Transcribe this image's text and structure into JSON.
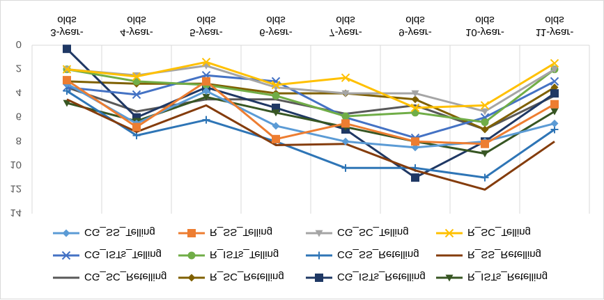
{
  "chart_data": {
    "type": "line",
    "title": "",
    "xlabel": "",
    "ylabel": "",
    "ylim": [
      0,
      14
    ],
    "y_ticks": [
      "0",
      "2",
      "4",
      "6",
      "8",
      "10",
      "12",
      "14"
    ],
    "y_reversed": true,
    "rendering": "image appears vertically mirrored (upside-down text)",
    "grid": "vertical category gridlines",
    "legend_position": "bottom",
    "categories": [
      [
        "3-year-",
        "olds"
      ],
      [
        "4-year-",
        "olds"
      ],
      [
        "5-year-",
        "olds"
      ],
      [
        "6-year-",
        "olds"
      ],
      [
        "7-year-",
        "olds"
      ],
      [
        "9-year-",
        "olds"
      ],
      [
        "10-year-",
        "olds"
      ],
      [
        "11-year-",
        "olds"
      ]
    ],
    "series": [
      {
        "name": "CG_SC_Retelling",
        "color": "#595959",
        "marker": "none",
        "values": [
          3.5,
          5.5,
          4.5,
          4.5,
          5.7,
          5.0,
          7.0,
          4.2
        ]
      },
      {
        "name": "R_SC_Retelling",
        "color": "#7f6000",
        "marker": "diamond",
        "values": [
          3.0,
          3.2,
          3.2,
          4.0,
          4.0,
          4.5,
          7.0,
          3.5
        ]
      },
      {
        "name": "CG_ISTs_Retelling",
        "color": "#1f3864",
        "marker": "square",
        "values": [
          0.3,
          6.0,
          3.5,
          5.2,
          7.0,
          11.0,
          8.0,
          4.0
        ]
      },
      {
        "name": "R_ISTs_Retelling",
        "color": "#375623",
        "marker": "triangle",
        "values": [
          4.8,
          6.3,
          4.3,
          5.6,
          6.8,
          8.0,
          9.0,
          5.5
        ]
      },
      {
        "name": "CG_ISTs_Telling",
        "color": "#4472c4",
        "marker": "x",
        "values": [
          3.5,
          4.1,
          2.5,
          3.0,
          6.0,
          7.7,
          6.0,
          3.0
        ]
      },
      {
        "name": "R_ISTs_Telling",
        "color": "#70ad47",
        "marker": "circle",
        "values": [
          2.0,
          3.0,
          3.3,
          4.2,
          5.9,
          5.6,
          6.4,
          2.0
        ]
      },
      {
        "name": "CG_SS_Retelling",
        "color": "#2e75b6",
        "marker": "plus",
        "values": [
          3.8,
          7.5,
          6.2,
          8.0,
          10.2,
          10.2,
          11.0,
          7.0
        ]
      },
      {
        "name": "R_SS_Retelling",
        "color": "#843c0c",
        "marker": "none",
        "values": [
          4.5,
          7.2,
          5.0,
          8.3,
          8.2,
          10.4,
          12.0,
          8.0
        ]
      },
      {
        "name": "CG_SS_Telling",
        "color": "#5b9bd5",
        "marker": "diamond",
        "values": [
          3.2,
          6.5,
          3.8,
          6.7,
          8.0,
          8.5,
          8.0,
          6.5
        ]
      },
      {
        "name": "R_SS_Telling",
        "color": "#ed7d31",
        "marker": "square",
        "values": [
          2.9,
          6.8,
          3.0,
          7.8,
          6.5,
          8.0,
          8.2,
          4.9
        ]
      },
      {
        "name": "CG_SC_Telling",
        "color": "#a5a5a5",
        "marker": "triangle",
        "values": [
          2.0,
          2.5,
          1.7,
          3.5,
          4.0,
          4.0,
          5.5,
          2.0
        ]
      },
      {
        "name": "R_SC_Telling",
        "color": "#ffc000",
        "marker": "x",
        "values": [
          2.0,
          2.6,
          1.4,
          3.3,
          2.7,
          5.2,
          5.0,
          1.5
        ]
      }
    ]
  }
}
